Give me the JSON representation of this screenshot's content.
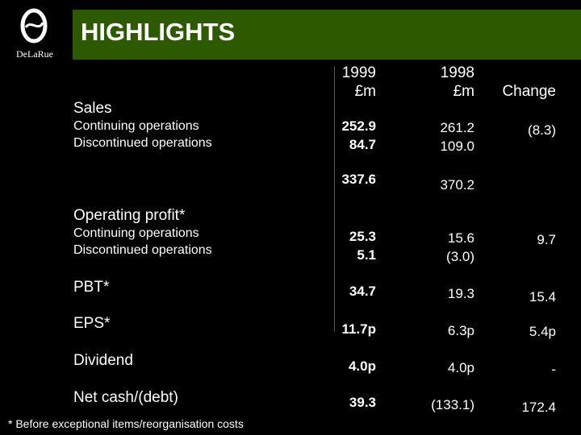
{
  "logo": {
    "text": "DeLaRue"
  },
  "title": "HIGHLIGHTS",
  "columns": {
    "y1999": {
      "line1": "1999",
      "line2": "£m"
    },
    "y1998": {
      "line1": "1998",
      "line2": "£m"
    },
    "change": "Change"
  },
  "sales": {
    "label": "Sales",
    "continuing": {
      "label": "Continuing operations",
      "y1999": "252.9",
      "y1998": "261.2",
      "change": "(8.3)"
    },
    "discontinued": {
      "label": "Discontinued operations",
      "y1999": "84.7",
      "y1998": "109.0"
    },
    "total": {
      "y1999": "337.6",
      "y1998": "370.2"
    }
  },
  "operating_profit": {
    "label": "Operating profit*",
    "continuing": {
      "label": "Continuing operations",
      "y1999": "25.3",
      "y1998": "15.6",
      "change": "9.7"
    },
    "discontinued": {
      "label": "Discontinued operations",
      "y1999": "5.1",
      "y1998": "(3.0)"
    }
  },
  "pbt": {
    "label": "PBT*",
    "y1999": "34.7",
    "y1998": "19.3",
    "change": "15.4"
  },
  "eps": {
    "label": "EPS*",
    "y1999": "11.7p",
    "y1998": "6.3p",
    "change": "5.4p"
  },
  "dividend": {
    "label": "Dividend",
    "y1999": "4.0p",
    "y1998": "4.0p",
    "change": "-"
  },
  "net_cash": {
    "label": "Net cash/(debt)",
    "y1999": "39.3",
    "y1998": "(133.1)",
    "change": "172.4"
  },
  "footnote": "* Before exceptional items/reorganisation costs",
  "colors": {
    "title_bar": "#2d5a00",
    "background": "#000000",
    "text": "#ffffff"
  }
}
